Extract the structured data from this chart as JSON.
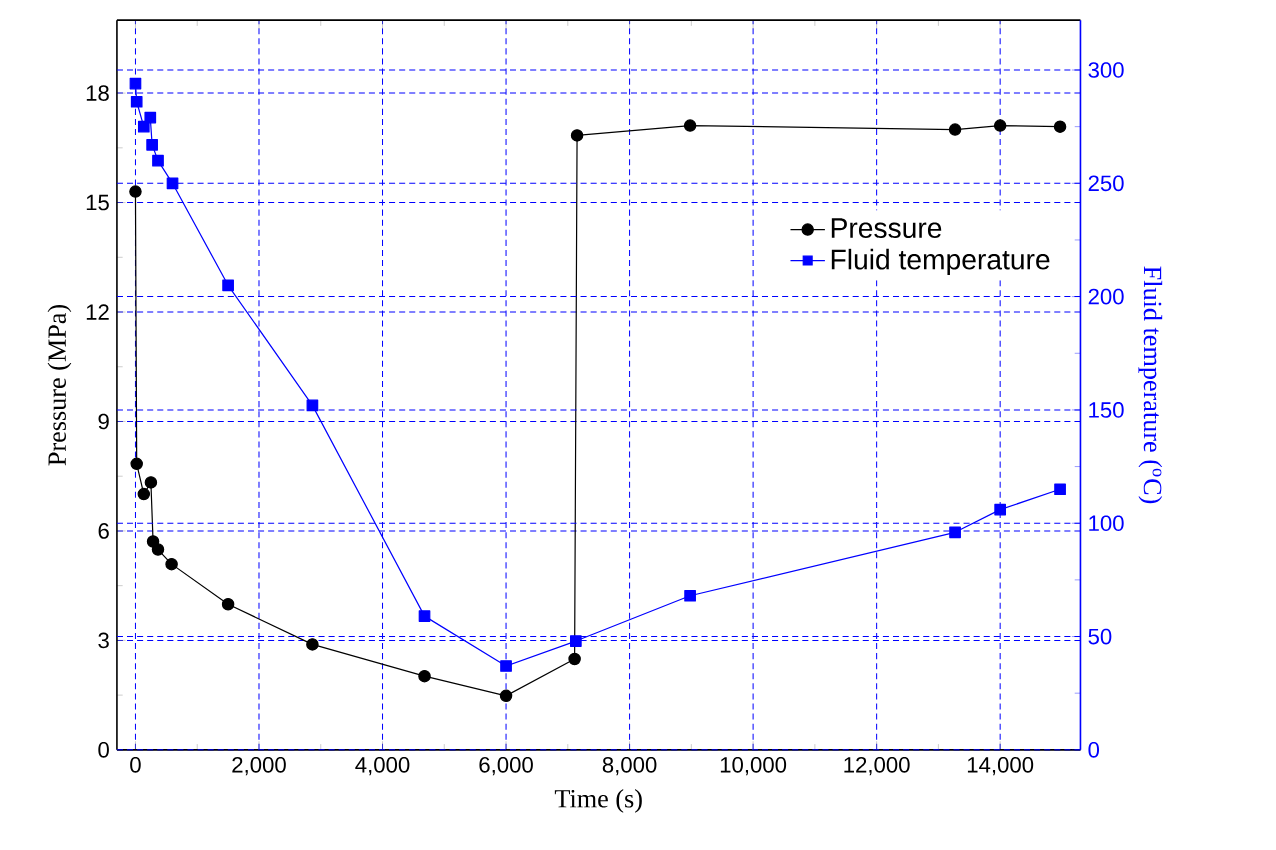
{
  "chart_data": {
    "type": "line",
    "xlabel": "Time (s)",
    "ylabel": "Pressure (MPa)",
    "y2label": "Fluid temperature ($^{o}$C)",
    "xlim": [
      -300,
      15300
    ],
    "ylim": [
      0,
      20
    ],
    "y2lim": [
      0,
      322
    ],
    "xticks": [
      0,
      {
        "value": 2000,
        "label": "2,000"
      },
      {
        "value": 4000,
        "label": "4,000"
      },
      {
        "value": 6000,
        "label": "6,000"
      },
      {
        "value": 8000,
        "label": "8,000"
      },
      {
        "value": 10000,
        "label": "10,000"
      },
      {
        "value": 12000,
        "label": "12,000"
      },
      {
        "value": 14000,
        "label": "14,000"
      }
    ],
    "yticks": [
      0,
      3,
      6,
      9,
      12,
      15,
      18
    ],
    "y2ticks": [
      0,
      50,
      100,
      150,
      200,
      250,
      300
    ],
    "grid": true,
    "legend": "top right",
    "series": [
      {
        "name": "Pressure",
        "color": "#000000",
        "marker": "circle",
        "x": [
          0,
          20,
          135,
          250,
          285,
          365,
          585,
          1500,
          2865,
          4680,
          6000,
          7110,
          7150,
          8980,
          13270,
          14000,
          14970
        ],
        "values": [
          15.3,
          7.84,
          7.01,
          7.33,
          5.71,
          5.49,
          5.09,
          3.99,
          2.89,
          2.02,
          1.48,
          2.49,
          16.84,
          17.11,
          17.0,
          17.11,
          17.08
        ]
      },
      {
        "name": "Fluid temperature",
        "color": "#0000ff",
        "marker": "square",
        "axis": "y2",
        "x": [
          0,
          20,
          135,
          240,
          270,
          365,
          600,
          1500,
          2865,
          4680,
          6000,
          7130,
          8980,
          13270,
          14000,
          14970
        ],
        "values": [
          294,
          286,
          275,
          279,
          267,
          260,
          250,
          205,
          152,
          59,
          37,
          48,
          68,
          96,
          106,
          115
        ]
      }
    ]
  }
}
